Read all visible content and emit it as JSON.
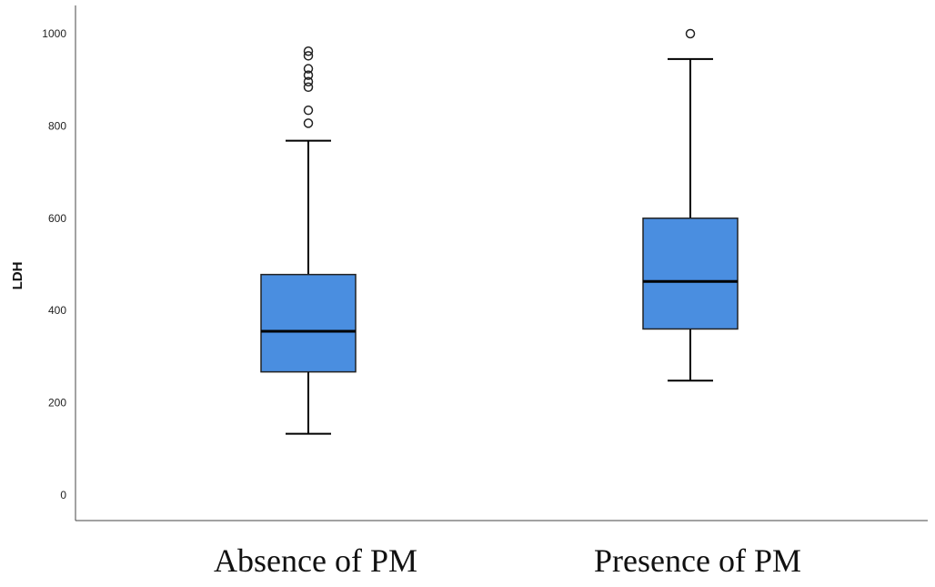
{
  "chart_data": {
    "type": "box",
    "title": "",
    "xlabel": "",
    "ylabel": "LDH",
    "ylim": [
      0,
      1000
    ],
    "yticks": [
      0,
      200,
      400,
      600,
      800,
      1000
    ],
    "grid": false,
    "box_color": "#4a8ee0",
    "categories": [
      "Absence of PM",
      "Presence of PM"
    ],
    "boxes": [
      {
        "category": "Absence of PM",
        "whisker_low": 133,
        "q1": 267,
        "median": 355,
        "q3": 478,
        "whisker_high": 768,
        "outliers": [
          806,
          834,
          884,
          896,
          910,
          924,
          952,
          962
        ]
      },
      {
        "category": "Presence of PM",
        "whisker_low": 248,
        "q1": 360,
        "median": 463,
        "q3": 600,
        "whisker_high": 945,
        "outliers": [
          1000
        ]
      }
    ]
  }
}
